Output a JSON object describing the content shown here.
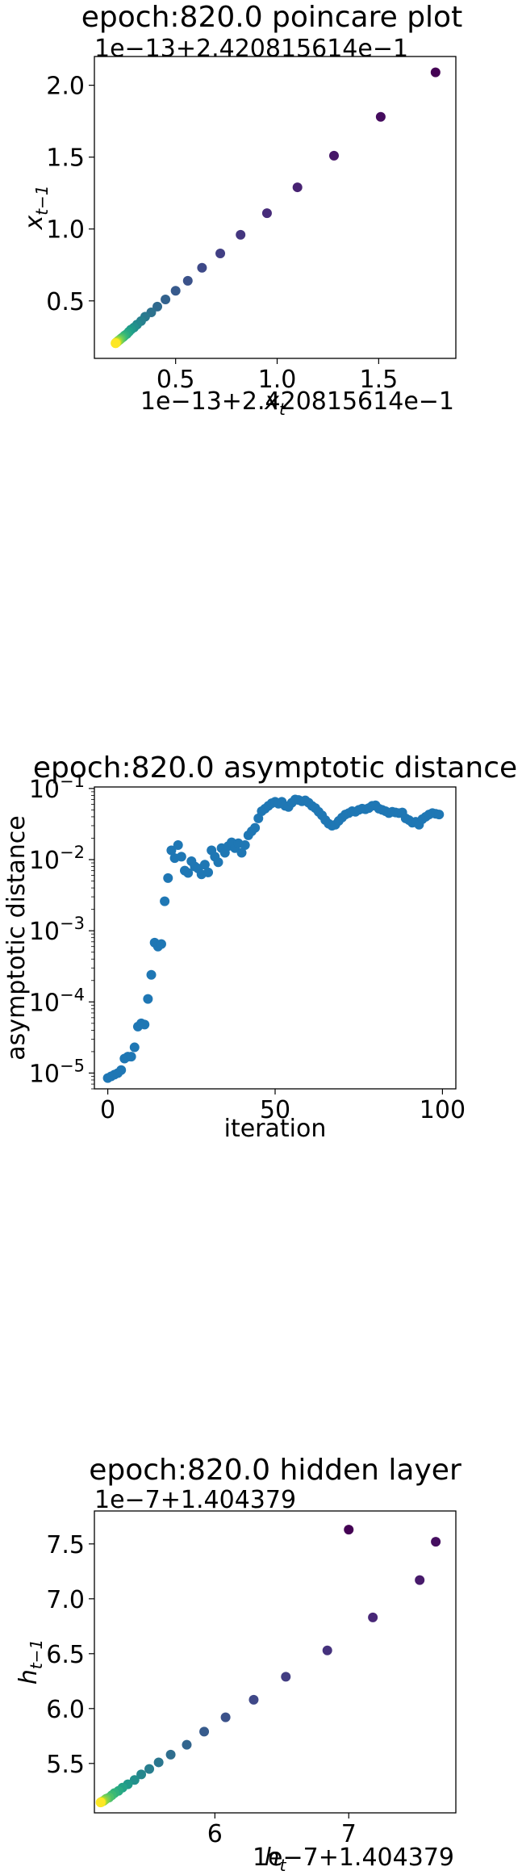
{
  "chart_data": [
    {
      "type": "scatter",
      "title": "epoch:820.0 poincare plot",
      "xlabel": "x_t",
      "ylabel": "x_{t−1}",
      "x_offset_label": "1e−13+2.420815614e−1",
      "y_offset_label": "1e−13+2.420815614e−1",
      "xlim": [
        0.1,
        1.88
      ],
      "ylim": [
        0.1,
        2.2
      ],
      "x_ticks": [
        0.5,
        1.0,
        1.5
      ],
      "x_tick_labels": [
        "0.5",
        "1.0",
        "1.5"
      ],
      "y_ticks": [
        0.5,
        1.0,
        1.5,
        2.0
      ],
      "y_tick_labels": [
        "0.5",
        "1.0",
        "1.5",
        "2.0"
      ],
      "colormap": "viridis",
      "color_by": "iteration",
      "points": [
        {
          "x": 1.78,
          "y": 2.09
        },
        {
          "x": 1.51,
          "y": 1.78
        },
        {
          "x": 1.28,
          "y": 1.51
        },
        {
          "x": 1.1,
          "y": 1.29
        },
        {
          "x": 0.95,
          "y": 1.11
        },
        {
          "x": 0.82,
          "y": 0.96
        },
        {
          "x": 0.72,
          "y": 0.83
        },
        {
          "x": 0.63,
          "y": 0.73
        },
        {
          "x": 0.56,
          "y": 0.64
        },
        {
          "x": 0.5,
          "y": 0.57
        },
        {
          "x": 0.45,
          "y": 0.51
        },
        {
          "x": 0.41,
          "y": 0.46
        },
        {
          "x": 0.38,
          "y": 0.42
        },
        {
          "x": 0.35,
          "y": 0.39
        },
        {
          "x": 0.33,
          "y": 0.36
        },
        {
          "x": 0.31,
          "y": 0.335
        },
        {
          "x": 0.295,
          "y": 0.315
        },
        {
          "x": 0.28,
          "y": 0.3
        },
        {
          "x": 0.27,
          "y": 0.285
        },
        {
          "x": 0.26,
          "y": 0.27
        },
        {
          "x": 0.25,
          "y": 0.26
        },
        {
          "x": 0.243,
          "y": 0.25
        },
        {
          "x": 0.236,
          "y": 0.243
        },
        {
          "x": 0.23,
          "y": 0.236
        },
        {
          "x": 0.225,
          "y": 0.23
        },
        {
          "x": 0.22,
          "y": 0.225
        },
        {
          "x": 0.216,
          "y": 0.22
        },
        {
          "x": 0.213,
          "y": 0.216
        },
        {
          "x": 0.21,
          "y": 0.213
        },
        {
          "x": 0.208,
          "y": 0.21
        },
        {
          "x": 0.206,
          "y": 0.208
        },
        {
          "x": 0.205,
          "y": 0.206
        },
        {
          "x": 0.204,
          "y": 0.205
        }
      ]
    },
    {
      "type": "scatter",
      "title": "epoch:820.0 asymptotic distance",
      "xlabel": "iteration",
      "ylabel": "asymptotic distance",
      "yscale": "log",
      "xlim": [
        -4,
        104
      ],
      "ylim": [
        6e-06,
        0.105
      ],
      "x_ticks": [
        0,
        50,
        100
      ],
      "x_tick_labels": [
        "0",
        "50",
        "100"
      ],
      "y_ticks": [
        1e-05,
        0.0001,
        0.001,
        0.01,
        0.1
      ],
      "y_tick_labels": [
        "10−5",
        "10−4",
        "10−3",
        "10−2",
        "10−1"
      ],
      "color": "#1f77b4",
      "x": [
        0,
        1,
        2,
        3,
        4,
        5,
        6,
        7,
        8,
        9,
        10,
        11,
        12,
        13,
        14,
        15,
        16,
        17,
        18,
        19,
        20,
        21,
        22,
        23,
        24,
        25,
        26,
        27,
        28,
        29,
        30,
        31,
        32,
        33,
        34,
        35,
        36,
        37,
        38,
        39,
        40,
        41,
        42,
        43,
        44,
        45,
        46,
        47,
        48,
        49,
        50,
        51,
        52,
        53,
        54,
        55,
        56,
        57,
        58,
        59,
        60,
        61,
        62,
        63,
        64,
        65,
        66,
        67,
        68,
        69,
        70,
        71,
        72,
        73,
        74,
        75,
        76,
        77,
        78,
        79,
        80,
        81,
        82,
        83,
        84,
        85,
        86,
        87,
        88,
        89,
        90,
        91,
        92,
        93,
        94,
        95,
        96,
        97,
        98,
        99
      ],
      "y": [
        8.5e-06,
        9e-06,
        9.5e-06,
        1e-05,
        1.1e-05,
        1.6e-05,
        1.7e-05,
        1.7e-05,
        2.3e-05,
        4.5e-05,
        5e-05,
        4.8e-05,
        0.00011,
        0.00024,
        0.00068,
        0.0006,
        0.00065,
        0.0026,
        0.0055,
        0.0135,
        0.0105,
        0.016,
        0.011,
        0.007,
        0.0065,
        0.0095,
        0.008,
        0.0075,
        0.0062,
        0.0085,
        0.0066,
        0.0135,
        0.011,
        0.0092,
        0.0145,
        0.0125,
        0.0155,
        0.0175,
        0.0145,
        0.017,
        0.0125,
        0.016,
        0.022,
        0.025,
        0.028,
        0.038,
        0.048,
        0.052,
        0.057,
        0.062,
        0.065,
        0.061,
        0.065,
        0.057,
        0.055,
        0.063,
        0.07,
        0.069,
        0.066,
        0.068,
        0.063,
        0.057,
        0.053,
        0.047,
        0.042,
        0.036,
        0.032,
        0.03,
        0.031,
        0.035,
        0.039,
        0.043,
        0.045,
        0.048,
        0.047,
        0.05,
        0.052,
        0.051,
        0.053,
        0.057,
        0.058,
        0.052,
        0.05,
        0.048,
        0.045,
        0.047,
        0.046,
        0.045,
        0.046,
        0.038,
        0.036,
        0.033,
        0.034,
        0.031,
        0.037,
        0.04,
        0.043,
        0.045,
        0.044,
        0.043
      ]
    },
    {
      "type": "scatter",
      "title": "epoch:820.0 hidden layer",
      "xlabel": "h_t",
      "ylabel": "h_{t−1}",
      "x_offset_label": "1e−7+1.404379",
      "y_offset_label": "1e−7+1.404379",
      "xlim": [
        5.1,
        7.8
      ],
      "ylim": [
        5.05,
        7.8
      ],
      "x_ticks": [
        6,
        7
      ],
      "x_tick_labels": [
        "6",
        "7"
      ],
      "y_ticks": [
        5.5,
        6.0,
        6.5,
        7.0,
        7.5
      ],
      "y_tick_labels": [
        "5.5",
        "6.0",
        "6.5",
        "7.0",
        "7.5"
      ],
      "colormap": "viridis",
      "color_by": "iteration",
      "points": [
        {
          "x": 7.0,
          "y": 7.63
        },
        {
          "x": 7.65,
          "y": 7.52
        },
        {
          "x": 7.53,
          "y": 7.17
        },
        {
          "x": 7.18,
          "y": 6.83
        },
        {
          "x": 6.84,
          "y": 6.53
        },
        {
          "x": 6.53,
          "y": 6.29
        },
        {
          "x": 6.29,
          "y": 6.08
        },
        {
          "x": 6.08,
          "y": 5.92
        },
        {
          "x": 5.92,
          "y": 5.79
        },
        {
          "x": 5.79,
          "y": 5.67
        },
        {
          "x": 5.67,
          "y": 5.58
        },
        {
          "x": 5.58,
          "y": 5.51
        },
        {
          "x": 5.51,
          "y": 5.45
        },
        {
          "x": 5.45,
          "y": 5.4
        },
        {
          "x": 5.4,
          "y": 5.35
        },
        {
          "x": 5.35,
          "y": 5.31
        },
        {
          "x": 5.31,
          "y": 5.28
        },
        {
          "x": 5.28,
          "y": 5.25
        },
        {
          "x": 5.25,
          "y": 5.23
        },
        {
          "x": 5.23,
          "y": 5.21
        },
        {
          "x": 5.21,
          "y": 5.19
        },
        {
          "x": 5.19,
          "y": 5.18
        },
        {
          "x": 5.18,
          "y": 5.17
        },
        {
          "x": 5.17,
          "y": 5.16
        },
        {
          "x": 5.16,
          "y": 5.155
        },
        {
          "x": 5.155,
          "y": 5.15
        },
        {
          "x": 5.15,
          "y": 5.148
        },
        {
          "x": 5.148,
          "y": 5.146
        },
        {
          "x": 5.146,
          "y": 5.145
        }
      ]
    }
  ]
}
